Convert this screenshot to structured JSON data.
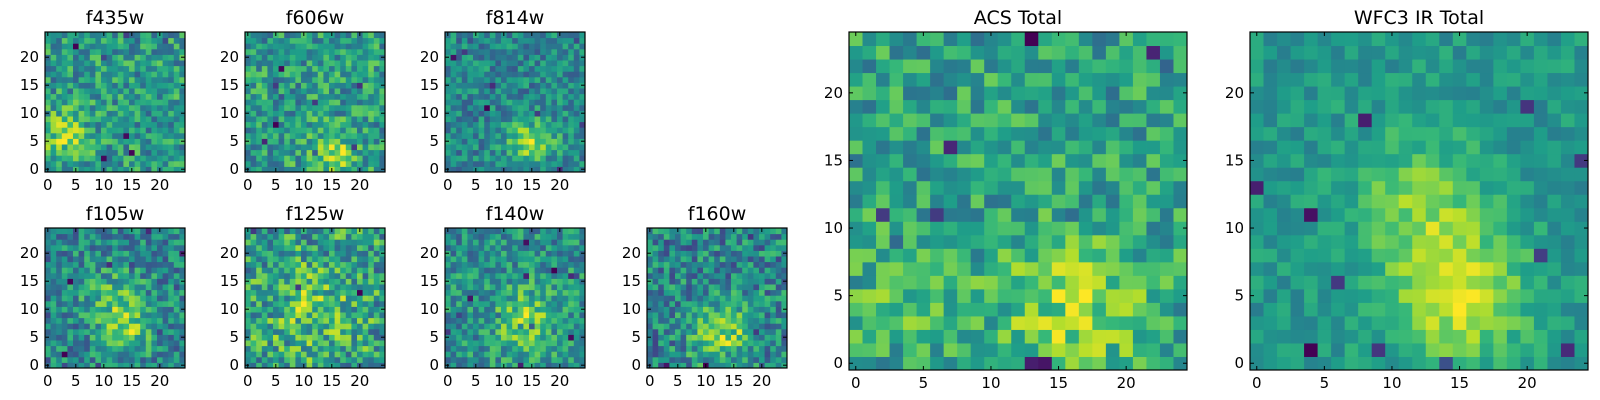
{
  "chart_data": [
    {
      "type": "heatmap",
      "title": "f435w",
      "colormap": "viridis",
      "grid_size": [
        25,
        25
      ],
      "x_ticks": [
        0,
        5,
        10,
        15,
        20
      ],
      "y_ticks": [
        0,
        5,
        10,
        15,
        20
      ],
      "xlim": [
        -0.5,
        24.5
      ],
      "ylim": [
        -0.5,
        24.5
      ],
      "seed": 11,
      "blobs": [
        [
          3,
          6,
          3,
          0.5
        ]
      ],
      "noise": 0.55,
      "bias": 0.45
    },
    {
      "type": "heatmap",
      "title": "f606w",
      "colormap": "viridis",
      "grid_size": [
        25,
        25
      ],
      "x_ticks": [
        0,
        5,
        10,
        15,
        20
      ],
      "y_ticks": [
        0,
        5,
        10,
        15,
        20
      ],
      "xlim": [
        -0.5,
        24.5
      ],
      "ylim": [
        -0.5,
        24.5
      ],
      "seed": 23,
      "blobs": [
        [
          15,
          3,
          3,
          0.5
        ]
      ],
      "noise": 0.55,
      "bias": 0.45
    },
    {
      "type": "heatmap",
      "title": "f814w",
      "colormap": "viridis",
      "grid_size": [
        25,
        25
      ],
      "x_ticks": [
        0,
        5,
        10,
        15,
        20
      ],
      "y_ticks": [
        0,
        5,
        10,
        15,
        20
      ],
      "xlim": [
        -0.5,
        24.5
      ],
      "ylim": [
        -0.5,
        24.5
      ],
      "seed": 37,
      "blobs": [
        [
          15,
          5,
          3,
          0.8
        ]
      ],
      "noise": 0.5,
      "bias": 0.4
    },
    {
      "type": "heatmap",
      "title": "f105w",
      "colormap": "viridis",
      "grid_size": [
        25,
        25
      ],
      "x_ticks": [
        0,
        5,
        10,
        15,
        20
      ],
      "y_ticks": [
        0,
        5,
        10,
        15,
        20
      ],
      "xlim": [
        -0.5,
        24.5
      ],
      "ylim": [
        -0.5,
        24.5
      ],
      "seed": 41,
      "blobs": [
        [
          14,
          6,
          3,
          0.6
        ],
        [
          12,
          12,
          4,
          0.4
        ]
      ],
      "noise": 0.55,
      "bias": 0.35
    },
    {
      "type": "heatmap",
      "title": "f125w",
      "colormap": "viridis",
      "grid_size": [
        25,
        25
      ],
      "x_ticks": [
        0,
        5,
        10,
        15,
        20
      ],
      "y_ticks": [
        0,
        5,
        10,
        15,
        20
      ],
      "xlim": [
        -0.5,
        24.5
      ],
      "ylim": [
        -0.5,
        24.5
      ],
      "seed": 53,
      "blobs": [
        [
          12,
          10,
          5,
          0.3
        ]
      ],
      "noise": 0.6,
      "bias": 0.4
    },
    {
      "type": "heatmap",
      "title": "f140w",
      "colormap": "viridis",
      "grid_size": [
        25,
        25
      ],
      "x_ticks": [
        0,
        5,
        10,
        15,
        20
      ],
      "y_ticks": [
        0,
        5,
        10,
        15,
        20
      ],
      "xlim": [
        -0.5,
        24.5
      ],
      "ylim": [
        -0.5,
        24.5
      ],
      "seed": 67,
      "blobs": [
        [
          14,
          8,
          4,
          0.6
        ]
      ],
      "noise": 0.55,
      "bias": 0.35
    },
    {
      "type": "heatmap",
      "title": "f160w",
      "colormap": "viridis",
      "grid_size": [
        25,
        25
      ],
      "x_ticks": [
        0,
        5,
        10,
        15,
        20
      ],
      "y_ticks": [
        0,
        5,
        10,
        15,
        20
      ],
      "xlim": [
        -0.5,
        24.5
      ],
      "ylim": [
        -0.5,
        24.5
      ],
      "seed": 79,
      "blobs": [
        [
          13,
          6,
          4,
          0.6
        ]
      ],
      "noise": 0.55,
      "bias": 0.35
    },
    {
      "type": "heatmap",
      "title": "ACS Total",
      "colormap": "viridis",
      "grid_size": [
        25,
        25
      ],
      "x_ticks": [
        0,
        5,
        10,
        15,
        20
      ],
      "y_ticks": [
        0,
        5,
        10,
        15,
        20
      ],
      "xlim": [
        -0.5,
        24.5
      ],
      "ylim": [
        -0.5,
        24.5
      ],
      "seed": 97,
      "blobs": [
        [
          16,
          4,
          4,
          0.35
        ],
        [
          3,
          5,
          3,
          0.15
        ]
      ],
      "noise": 0.35,
      "bias": 0.55
    },
    {
      "type": "heatmap",
      "title": "WFC3 IR Total",
      "colormap": "viridis",
      "grid_size": [
        25,
        25
      ],
      "x_ticks": [
        0,
        5,
        10,
        15,
        20
      ],
      "y_ticks": [
        0,
        5,
        10,
        15,
        20
      ],
      "xlim": [
        -0.5,
        24.5
      ],
      "ylim": [
        -0.5,
        24.5
      ],
      "seed": 131,
      "blobs": [
        [
          15,
          5,
          3.5,
          0.55
        ],
        [
          12,
          12,
          3.5,
          0.35
        ]
      ],
      "noise": 0.2,
      "bias": 0.28
    }
  ]
}
